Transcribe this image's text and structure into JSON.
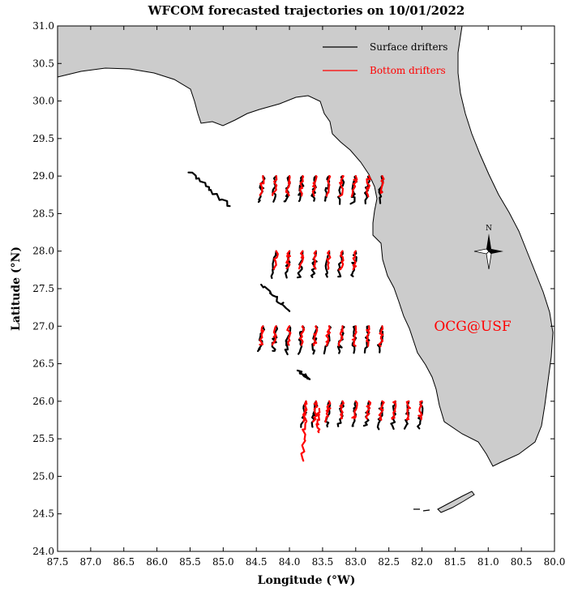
{
  "title": "WFCOM forecasted trajectories on 10/01/2022",
  "x_axis": {
    "label": "Longitude (°W)",
    "range": [
      87.5,
      80.0
    ],
    "ticks": [
      "87.5",
      "87.0",
      "86.5",
      "86.0",
      "85.5",
      "85.0",
      "84.5",
      "84.0",
      "83.5",
      "83.0",
      "82.5",
      "82.0",
      "81.5",
      "81.0",
      "80.5",
      "80.0"
    ]
  },
  "y_axis": {
    "label": "Latitude (°N)",
    "range": [
      24.0,
      31.0
    ],
    "ticks": [
      "24.0",
      "24.5",
      "25.0",
      "25.5",
      "26.0",
      "26.5",
      "27.0",
      "27.5",
      "28.0",
      "28.5",
      "29.0",
      "29.5",
      "30.0",
      "30.5",
      "31.0"
    ]
  },
  "legend": {
    "placement": "top-right",
    "items": [
      {
        "label": "Surface drifters",
        "color": "#000000"
      },
      {
        "label": "Bottom drifters",
        "color": "#ff0000"
      }
    ]
  },
  "watermark": {
    "text": "OCG@USF",
    "color": "#ff0000"
  },
  "compass_label": "N",
  "colors": {
    "land": "#cccccc",
    "surface": "#000000",
    "bottom": "#ff0000"
  }
}
